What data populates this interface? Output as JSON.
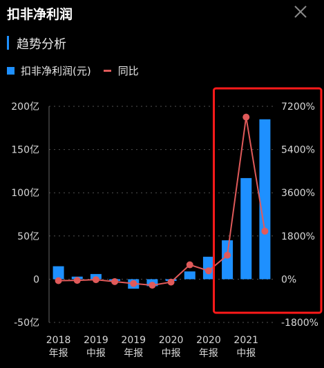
{
  "header": {
    "title": "扣非净利润",
    "close_icon": "close-icon"
  },
  "section": {
    "title": "趋势分析"
  },
  "colors": {
    "bar": "#1e90ff",
    "line": "#e05a5a",
    "highlight": "#ff1a1a",
    "grid": "#555555"
  },
  "chart_data": {
    "type": "bar+line",
    "legend": {
      "bar": "扣非净利润(元)",
      "line": "同比"
    },
    "categories": [
      [
        "2018",
        "年报"
      ],
      [
        "",
        ""
      ],
      [
        "2019",
        "中报"
      ],
      [
        "",
        ""
      ],
      [
        "2019",
        "年报"
      ],
      [
        "",
        ""
      ],
      [
        "2020",
        "中报"
      ],
      [
        "",
        ""
      ],
      [
        "2020",
        "年报"
      ],
      [
        "",
        ""
      ],
      [
        "2021",
        "中报"
      ],
      [
        "",
        ""
      ]
    ],
    "left_axis": {
      "ticks": [
        "200亿",
        "150亿",
        "100亿",
        "50亿",
        "0",
        "-50亿"
      ],
      "min": -50,
      "max": 200
    },
    "right_axis": {
      "ticks": [
        "7200%",
        "5400%",
        "3600%",
        "1800%",
        "0%",
        "-1800%"
      ],
      "min": -1800,
      "max": 7200
    },
    "series": [
      {
        "name": "扣非净利润(元)",
        "type": "bar",
        "unit": "亿",
        "values": [
          15,
          3,
          6,
          -2,
          -11,
          -8,
          -2,
          9,
          26,
          45,
          117,
          185
        ]
      },
      {
        "name": "同比",
        "type": "line",
        "unit": "%",
        "values": [
          -60,
          -50,
          -20,
          -100,
          -180,
          -250,
          -120,
          600,
          350,
          1000,
          6750,
          2000
        ]
      }
    ],
    "grid": "dotted horizontal",
    "highlight": "red rectangle around last three periods"
  }
}
